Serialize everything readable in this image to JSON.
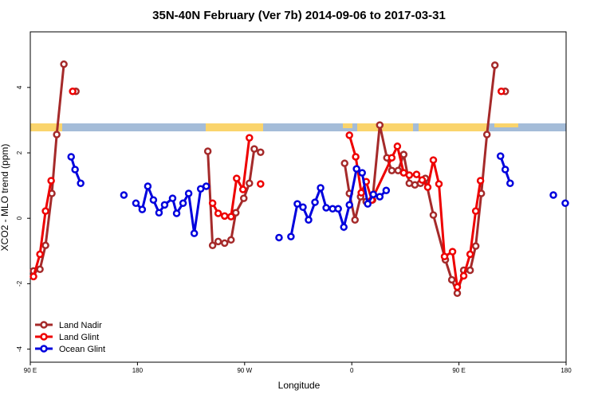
{
  "chart_data": {
    "type": "line",
    "title": "35N-40N February (Ver 7b)   2014-09-06 to 2017-03-31",
    "x_label": "Longitude",
    "y_label": "XCO2 - MLO trend (ppm)",
    "xlim": [
      90,
      540
    ],
    "xticks": [
      {
        "value": 90,
        "label": "90 E"
      },
      180,
      {
        "value": 270,
        "label": "90 W"
      },
      {
        "value": 360,
        "label": "0"
      },
      {
        "value": 450,
        "label": "90 E"
      },
      {
        "value": 540,
        "label": "180"
      }
    ],
    "ylim": [
      -4.4,
      5.7
    ],
    "yticks": [
      -4,
      -2,
      0,
      2,
      4
    ],
    "legend": "bottom-left",
    "series": [
      {
        "name": "Land Nadir",
        "color": "#a52a2a",
        "x": [
          92.7,
          98.1,
          102.8,
          108.1,
          112.2,
          118.2,
          null,
          128.3,
          null,
          239.1,
          243.1,
          247.8,
          253.2,
          258.6,
          262.6,
          269.3,
          274.0,
          278.1,
          283.4,
          null,
          354.0,
          358.0,
          362.7,
          367.4,
          372.1,
          377.4,
          383.5,
          389.5,
          393.6,
          398.9,
          403.6,
          408.3,
          413.0,
          417.7,
          421.8,
          428.5,
          438.6,
          444.0,
          448.6,
          454.0,
          459.4,
          464.1,
          468.8,
          473.5,
          480.2,
          null,
          488.9
        ],
        "values": [
          -1.61,
          -1.56,
          -0.83,
          0.76,
          2.56,
          4.71,
          null,
          3.88,
          null,
          2.05,
          -0.83,
          -0.71,
          -0.76,
          -0.66,
          0.17,
          0.61,
          1.07,
          2.12,
          2.02,
          null,
          1.68,
          0.76,
          -0.05,
          0.66,
          0.51,
          0.56,
          2.85,
          1.85,
          1.46,
          1.46,
          1.95,
          1.07,
          1.02,
          1.07,
          1.22,
          0.1,
          -1.27,
          -1.88,
          -2.29,
          -1.59,
          -1.59,
          -0.85,
          0.76,
          2.56,
          4.68,
          null,
          3.88
        ]
      },
      {
        "name": "Land Glint",
        "color": "#ee0000",
        "x": [
          92.7,
          98.1,
          102.8,
          107.5,
          null,
          125.6,
          null,
          243.1,
          247.8,
          253.2,
          258.6,
          263.3,
          268.6,
          274.0,
          null,
          283.4,
          null,
          358.0,
          363.3,
          368.0,
          372.1,
          376.8,
          393.6,
          398.3,
          403.6,
          408.3,
          414.4,
          419.1,
          423.8,
          428.5,
          433.2,
          437.9,
          444.6,
          448.6,
          454.0,
          459.4,
          464.1,
          468.1,
          null,
          485.6
        ],
        "values": [
          -1.78,
          -1.1,
          0.22,
          1.15,
          null,
          3.88,
          null,
          0.46,
          0.15,
          0.07,
          0.05,
          1.22,
          0.88,
          2.46,
          null,
          1.05,
          null,
          2.54,
          1.88,
          0.78,
          1.12,
          0.56,
          1.85,
          2.2,
          1.39,
          1.32,
          1.34,
          1.17,
          0.95,
          1.78,
          1.05,
          -1.17,
          -1.02,
          -2.1,
          -1.76,
          -1.1,
          0.22,
          1.15,
          null,
          3.88
        ]
      },
      {
        "name": "Ocean Glint",
        "color": "#0000dd",
        "x": [
          124.3,
          127.6,
          132.3,
          null,
          168.6,
          null,
          178.7,
          184.0,
          188.7,
          193.4,
          198.1,
          202.8,
          209.5,
          212.9,
          218.3,
          223.0,
          227.7,
          233.1,
          237.8,
          null,
          298.9,
          null,
          308.9,
          314.3,
          319.0,
          323.7,
          329.1,
          333.8,
          338.5,
          343.9,
          348.6,
          353.3,
          358.0,
          364.0,
          368.7,
          373.4,
          378.1,
          383.5,
          388.9,
          null,
          484.9,
          488.9,
          493.0,
          null,
          529.3,
          null,
          539.3
        ],
        "values": [
          1.88,
          1.49,
          1.07,
          null,
          0.71,
          null,
          0.46,
          0.27,
          0.98,
          0.56,
          0.17,
          0.41,
          0.61,
          0.15,
          0.46,
          0.76,
          -0.46,
          0.9,
          0.98,
          null,
          -0.59,
          null,
          -0.56,
          0.44,
          0.34,
          -0.05,
          0.49,
          0.93,
          0.32,
          0.29,
          0.29,
          -0.27,
          0.41,
          1.51,
          1.39,
          0.44,
          0.73,
          0.66,
          0.85,
          null,
          1.9,
          1.49,
          1.07,
          null,
          0.71,
          null,
          0.46
        ]
      }
    ]
  }
}
